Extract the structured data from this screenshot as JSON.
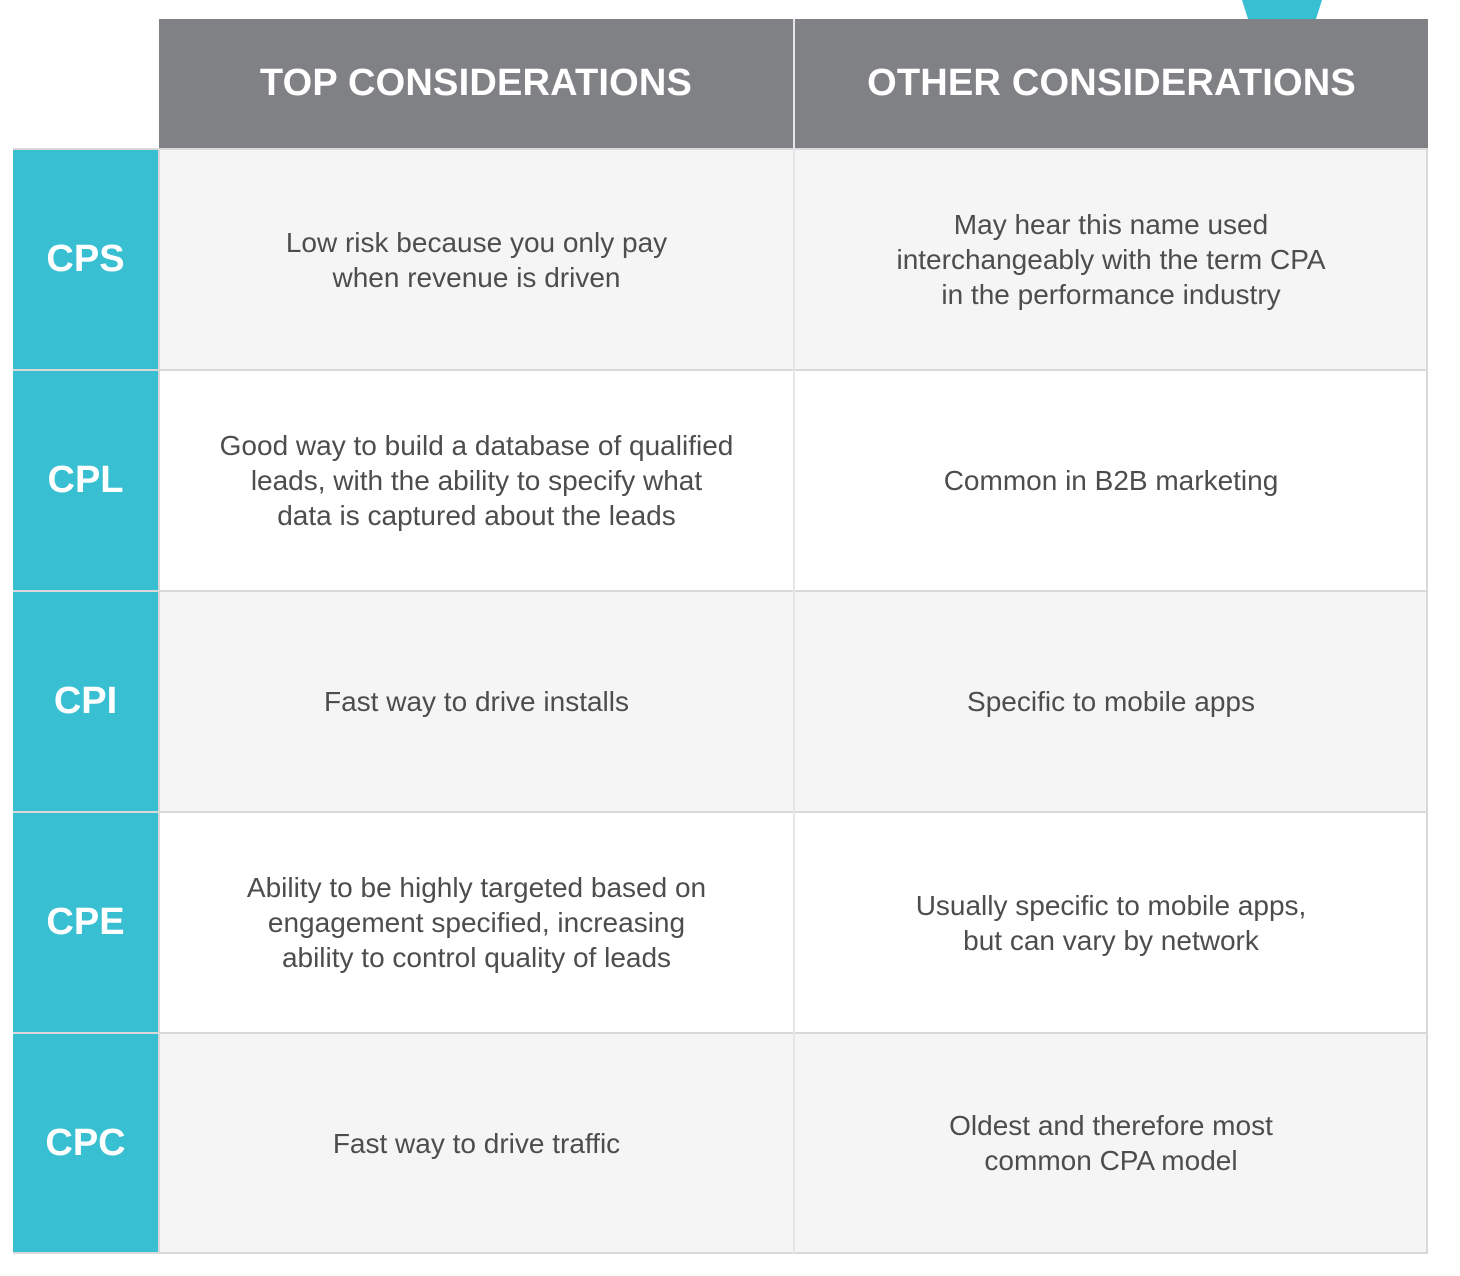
{
  "header": {
    "top_considerations": "TOP CONSIDERATIONS",
    "other_considerations": "OTHER CONSIDERATIONS"
  },
  "rows": [
    {
      "model": "CPS",
      "top": "Low risk because you only pay\nwhen revenue is driven",
      "other": "May hear this name used\ninterchangeably with the term CPA\nin the performance industry"
    },
    {
      "model": "CPL",
      "top": "Good way to build a database of qualified\nleads, with the ability to specify what\ndata is captured about the leads",
      "other": "Common in B2B marketing"
    },
    {
      "model": "CPI",
      "top": "Fast way to drive installs",
      "other": "Specific to mobile apps"
    },
    {
      "model": "CPE",
      "top": "Ability to be highly targeted based on\nengagement specified, increasing\nability to control quality of leads",
      "other": "Usually specific to mobile apps,\nbut can vary by network"
    },
    {
      "model": "CPC",
      "top": "Fast way to drive traffic",
      "other": "Oldest and therefore most\ncommon CPA model"
    }
  ],
  "colors": {
    "header_bg": "#808184",
    "label_bg": "#38bfd2",
    "row_shade": "#f5f5f5",
    "text": "#4d4d4f",
    "accent": "#38bfd2"
  }
}
